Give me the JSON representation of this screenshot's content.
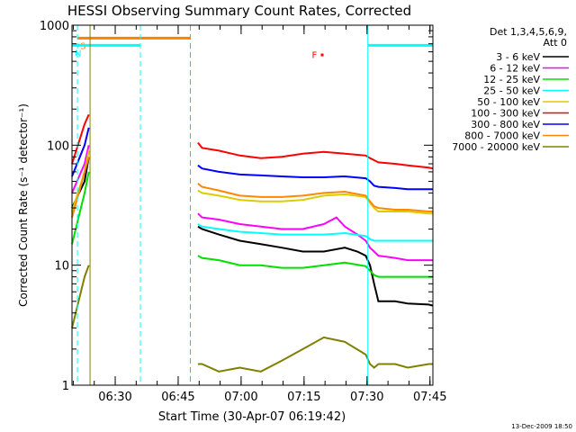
{
  "chart_data": {
    "type": "line",
    "title": "HESSI Observing Summary Count Rates, Corrected",
    "xlabel": "Start Time (30-Apr-07 06:19:42)",
    "ylabel": "Corrected Count Rate (s⁻¹ detector⁻¹)",
    "y_scale": "log",
    "ylim": [
      1,
      1000
    ],
    "xlim_minutes": [
      0,
      86
    ],
    "x_ticks": [
      {
        "t": 10.3,
        "label": "06:30"
      },
      {
        "t": 25.3,
        "label": "06:45"
      },
      {
        "t": 40.3,
        "label": "07:00"
      },
      {
        "t": 55.3,
        "label": "07:15"
      },
      {
        "t": 70.3,
        "label": "07:30"
      },
      {
        "t": 85.3,
        "label": "07:45"
      }
    ],
    "y_ticks": [
      {
        "v": 1,
        "label": "1"
      },
      {
        "v": 10,
        "label": "10"
      },
      {
        "v": 100,
        "label": "100"
      },
      {
        "v": 1000,
        "label": "1000"
      }
    ],
    "legend": {
      "title_lines": [
        "Det 1,3,4,5,6,9,",
        "Att 0"
      ],
      "placement": "right"
    },
    "series": [
      {
        "name": "3 - 6 keV",
        "color": "#000000",
        "x": [
          0,
          3,
          4,
          30,
          31,
          35,
          40,
          45,
          50,
          55,
          60,
          65,
          68,
          70,
          71,
          72,
          73,
          77,
          80,
          85,
          86
        ],
        "values": [
          30,
          50,
          80,
          21,
          20,
          18,
          16,
          15,
          14,
          13,
          13,
          14,
          13,
          12,
          10,
          7,
          5,
          5,
          4.8,
          4.7,
          4.6
        ]
      },
      {
        "name": "6 - 12 keV",
        "color": "#ff00ff",
        "x": [
          0,
          3,
          4,
          30,
          31,
          35,
          40,
          45,
          50,
          55,
          60,
          63,
          65,
          68,
          70,
          71,
          72,
          73,
          77,
          80,
          85,
          86
        ],
        "values": [
          40,
          70,
          100,
          27,
          25,
          24,
          22,
          21,
          20,
          20,
          22,
          25,
          21,
          18,
          16,
          14,
          13,
          12,
          11.5,
          11,
          11,
          11
        ]
      },
      {
        "name": "12 - 25 keV",
        "color": "#00e000",
        "x": [
          0,
          3,
          4,
          30,
          31,
          35,
          40,
          45,
          50,
          55,
          60,
          65,
          70,
          71,
          72,
          73,
          77,
          80,
          85,
          86
        ],
        "values": [
          15,
          40,
          60,
          12,
          11.5,
          11,
          10,
          10,
          9.5,
          9.5,
          10,
          10.5,
          9.8,
          9,
          8.3,
          8,
          8,
          8,
          8,
          8
        ]
      },
      {
        "name": "25 - 50 keV",
        "color": "#00ffff",
        "x": [
          0,
          3,
          4,
          30,
          31,
          35,
          40,
          45,
          50,
          55,
          60,
          65,
          70,
          71,
          72,
          73,
          77,
          80,
          85,
          86
        ],
        "values": [
          25,
          60,
          90,
          22,
          21,
          20,
          19,
          18.5,
          18,
          18,
          18,
          18.5,
          17.5,
          16.5,
          16,
          16,
          16,
          16,
          16,
          16
        ]
      },
      {
        "name": "50 - 100 keV",
        "color": "#ddcc00",
        "x": [
          0,
          3,
          4,
          30,
          31,
          35,
          40,
          45,
          50,
          55,
          60,
          65,
          70,
          71,
          72,
          73,
          77,
          80,
          85,
          86
        ],
        "values": [
          28,
          60,
          90,
          42,
          40,
          38,
          35,
          34,
          34,
          35,
          38,
          39,
          37,
          33,
          30,
          28,
          28,
          28,
          27,
          27
        ]
      },
      {
        "name": "100 - 300 keV",
        "color": "#ff0000",
        "x": [
          0,
          3,
          4,
          30,
          31,
          35,
          40,
          45,
          50,
          55,
          60,
          65,
          70,
          71,
          72,
          73,
          77,
          80,
          85,
          86
        ],
        "values": [
          70,
          150,
          180,
          105,
          95,
          90,
          82,
          78,
          80,
          85,
          88,
          85,
          82,
          78,
          75,
          72,
          70,
          68,
          65,
          64
        ]
      },
      {
        "name": "300 - 800 keV",
        "color": "#0000ff",
        "x": [
          0,
          3,
          4,
          30,
          31,
          35,
          40,
          45,
          50,
          55,
          60,
          65,
          70,
          71,
          72,
          73,
          77,
          80,
          85,
          86
        ],
        "values": [
          55,
          100,
          140,
          68,
          64,
          60,
          57,
          56,
          55,
          54,
          54,
          55,
          53,
          50,
          46,
          45,
          44,
          43,
          43,
          43
        ]
      },
      {
        "name": "800 - 7000 keV",
        "color": "#ff8800",
        "x": [
          0,
          3,
          4,
          30,
          31,
          35,
          40,
          45,
          50,
          55,
          60,
          65,
          70,
          71,
          72,
          73,
          77,
          80,
          85,
          86
        ],
        "values": [
          25,
          60,
          80,
          48,
          45,
          42,
          38,
          37,
          37,
          38,
          40,
          41,
          38,
          34,
          31,
          30,
          29,
          29,
          28,
          28
        ]
      },
      {
        "name": "7000 - 20000 keV",
        "color": "#808000",
        "x": [
          0,
          3,
          4,
          30,
          31,
          35,
          40,
          45,
          50,
          55,
          60,
          65,
          70,
          71,
          72,
          73,
          77,
          80,
          85,
          86
        ],
        "values": [
          3,
          8,
          10,
          1.5,
          1.5,
          1.3,
          1.4,
          1.3,
          1.6,
          2,
          2.5,
          2.3,
          1.8,
          1.5,
          1.4,
          1.5,
          1.5,
          1.4,
          1.5,
          1.5
        ]
      }
    ],
    "flag_bars": [
      {
        "label": "S",
        "color": "#ff8000",
        "x_start": 1.3,
        "x_end": 28.2,
        "value": 780
      },
      {
        "label": "N",
        "color": "#00ffff",
        "x_start": 0,
        "x_end": 16.3,
        "value": 680
      },
      {
        "label": "",
        "color": "#00ffff",
        "x_start": 70.5,
        "x_end": 86,
        "value": 680
      }
    ],
    "flag_markers": [
      {
        "label": "F",
        "color": "#ff0000",
        "x": 59.3,
        "value": 570
      }
    ],
    "vertical_markers": [
      {
        "x": 1.3,
        "color": "#00ffff",
        "style": "dashed"
      },
      {
        "x": 4.3,
        "color": "#808000",
        "style": "solid"
      },
      {
        "x": 16.3,
        "color": "#00ffff",
        "style": "dashed"
      },
      {
        "x": 28.2,
        "color": "#ff8000",
        "style": "dashed"
      },
      {
        "x": 70.5,
        "color": "#00ffff",
        "style": "solid"
      },
      {
        "x": 86,
        "color": "#00ffff",
        "style": "dashed"
      }
    ],
    "footer_date": "13-Dec-2009 18:50"
  }
}
